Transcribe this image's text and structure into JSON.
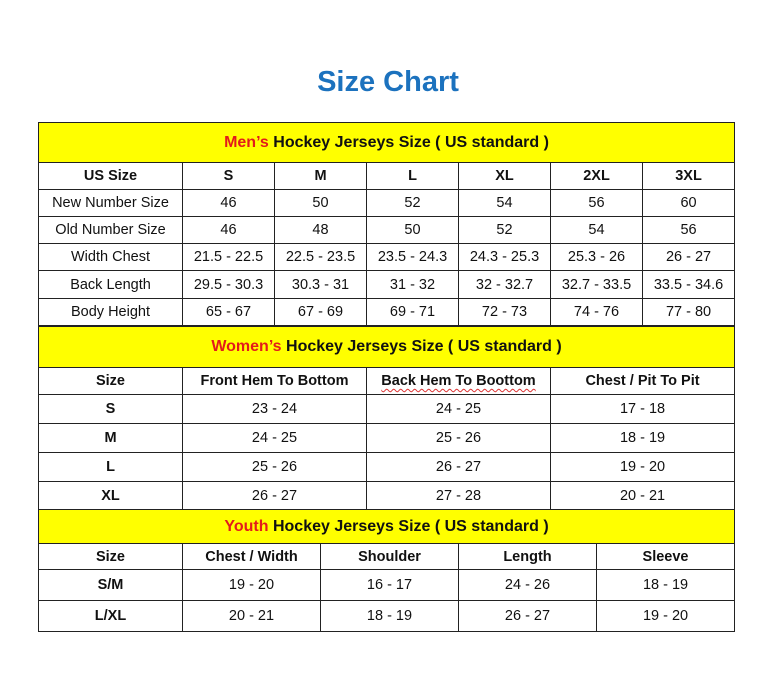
{
  "title": "Size Chart",
  "colors": {
    "title": "#1c72be",
    "band": "#ffff00",
    "accent": "#e31b1b"
  },
  "mens": {
    "band_accent": "Men’s",
    "band_rest": " Hockey Jerseys Size ( US standard )",
    "header": [
      "US Size",
      "S",
      "M",
      "L",
      "XL",
      "2XL",
      "3XL"
    ],
    "rows": [
      [
        "New Number Size",
        "46",
        "50",
        "52",
        "54",
        "56",
        "60"
      ],
      [
        "Old Number Size",
        "46",
        "48",
        "50",
        "52",
        "54",
        "56"
      ],
      [
        "Width Chest",
        "21.5 - 22.5",
        "22.5 - 23.5",
        "23.5 - 24.3",
        "24.3 - 25.3",
        "25.3 - 26",
        "26 - 27"
      ],
      [
        "Back Length",
        "29.5 - 30.3",
        "30.3 - 31",
        "31 - 32",
        "32 - 32.7",
        "32.7 - 33.5",
        "33.5 - 34.6"
      ],
      [
        "Body Height",
        "65 - 67",
        "67 - 69",
        "69 - 71",
        "72 - 73",
        "74 - 76",
        "77 - 80"
      ]
    ]
  },
  "womens": {
    "band_accent": "Women’s",
    "band_rest": " Hockey Jerseys Size ( US standard )",
    "header": [
      "Size",
      "Front Hem To Bottom",
      "Back Hem To Boottom",
      "Chest / Pit To Pit"
    ],
    "rows": [
      [
        "S",
        "23 - 24",
        "24 - 25",
        "17 - 18"
      ],
      [
        "M",
        "24 - 25",
        "25 - 26",
        "18 - 19"
      ],
      [
        "L",
        "25 - 26",
        "26 - 27",
        "19 - 20"
      ],
      [
        "XL",
        "26 - 27",
        "27 - 28",
        "20 - 21"
      ]
    ]
  },
  "youth": {
    "band_accent": "Youth",
    "band_rest": " Hockey Jerseys Size ( US standard )",
    "header": [
      "Size",
      "Chest / Width",
      "Shoulder",
      "Length",
      "Sleeve"
    ],
    "rows": [
      [
        "S/M",
        "19 - 20",
        "16 - 17",
        "24 - 26",
        "18 - 19"
      ],
      [
        "L/XL",
        "20 - 21",
        "18 - 19",
        "26 - 27",
        "19 - 20"
      ]
    ]
  }
}
